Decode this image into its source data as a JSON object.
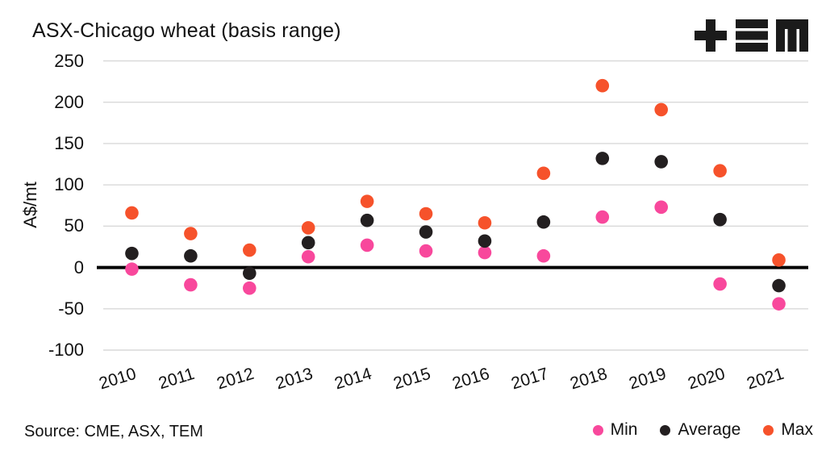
{
  "title": "ASX-Chicago wheat (basis range)",
  "logo": {
    "name": "TEM logo",
    "glyphs": [
      "plus",
      "triple-bar",
      "m-mark"
    ],
    "color": "#1b1b1b"
  },
  "chart_data": {
    "type": "scatter",
    "title": "ASX-Chicago wheat (basis range)",
    "xlabel": "",
    "ylabel": "A$/mt",
    "categories": [
      "2010",
      "2011",
      "2012",
      "2013",
      "2014",
      "2015",
      "2016",
      "2017",
      "2018",
      "2019",
      "2020",
      "2021"
    ],
    "series": [
      {
        "name": "Min",
        "color": "#f8489c",
        "values": [
          -2,
          -21,
          -25,
          13,
          27,
          20,
          18,
          14,
          61,
          73,
          -20,
          -44
        ]
      },
      {
        "name": "Average",
        "color": "#231f20",
        "values": [
          17,
          14,
          -7,
          30,
          57,
          43,
          32,
          55,
          132,
          128,
          58,
          -22
        ]
      },
      {
        "name": "Max",
        "color": "#f6522b",
        "values": [
          66,
          41,
          21,
          48,
          80,
          65,
          54,
          114,
          220,
          191,
          117,
          9
        ]
      }
    ],
    "ylim": [
      -100,
      250
    ],
    "yticks": [
      250,
      200,
      150,
      100,
      50,
      0,
      -50,
      -100
    ],
    "grid": true,
    "gridline_color": "#d9d9d9",
    "zero_line": true,
    "zero_line_color": "#000000",
    "legend_position": "bottom-right"
  },
  "footer": {
    "source": "Source: CME, ASX, TEM"
  }
}
